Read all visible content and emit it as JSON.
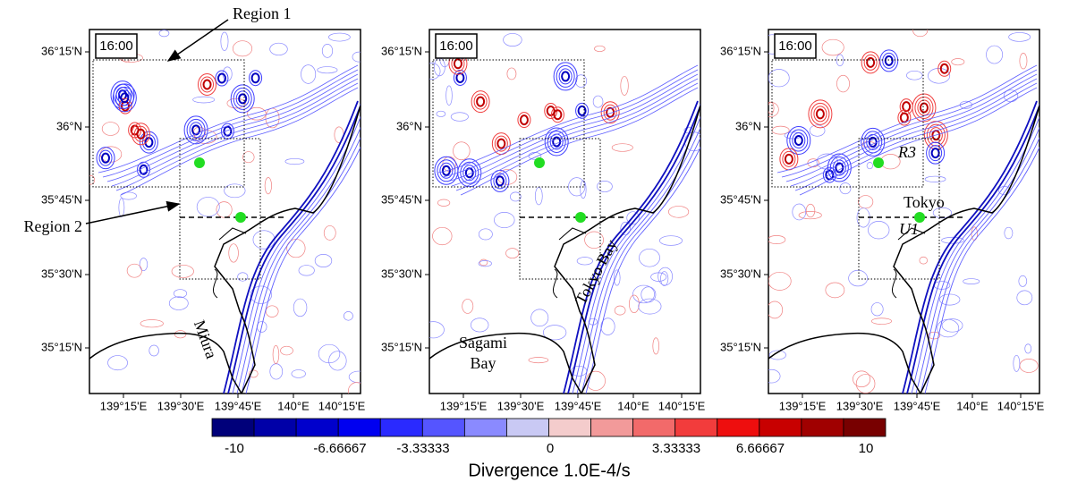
{
  "panels": [
    {
      "time": "16:00",
      "labels": {
        "region1": "Region 1",
        "region2": "Region 2",
        "miura": "Miura"
      }
    },
    {
      "time": "16:00",
      "labels": {
        "sagami": "Sagami",
        "bay": "Bay",
        "tokyo_bay": "Tokyo Bay"
      }
    },
    {
      "time": "16:00",
      "labels": {
        "r3": "R3",
        "tokyo": "Tokyo",
        "u1": "U1"
      }
    }
  ],
  "lat_labels": [
    "36°15'N",
    "36°N",
    "35°45'N",
    "35°30'N",
    "35°15'N"
  ],
  "lon_labels": [
    "139°15'E",
    "139°30'E",
    "139°45'E",
    "140°E",
    "140°15'E"
  ],
  "colorbar": {
    "title": "Divergence 1.0E-4/s",
    "labels": [
      "-10",
      "-6.66667",
      "-3.33333",
      "0",
      "3.33333",
      "6.66667",
      "10"
    ],
    "colors": [
      "#00007a",
      "#0000a8",
      "#0000cc",
      "#0000f0",
      "#2a2aff",
      "#5555ff",
      "#8a8aff",
      "#c9c9f4",
      "#f4cccc",
      "#f29a9a",
      "#f26a6a",
      "#f23c3c",
      "#ee0e0e",
      "#c80000",
      "#a00000",
      "#780000"
    ]
  }
}
